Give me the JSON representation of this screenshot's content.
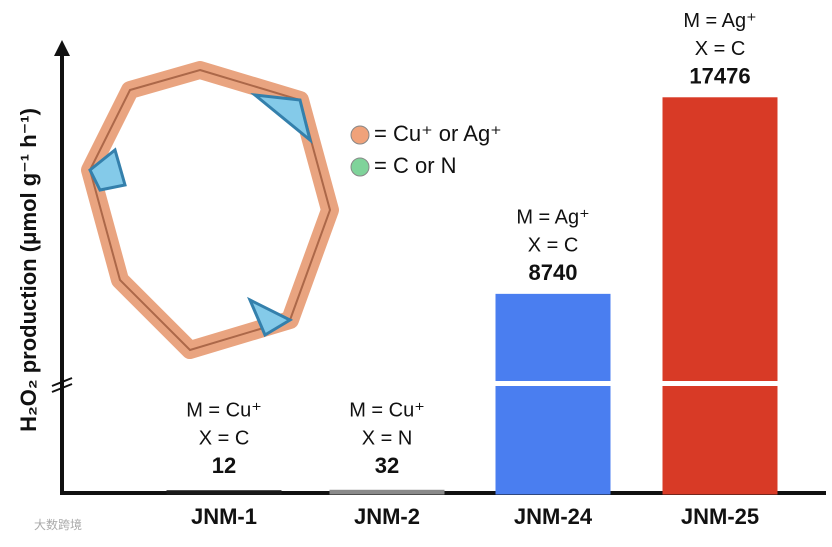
{
  "chart_data": {
    "type": "bar",
    "ylabel": "H₂O₂ production (μmol g⁻¹ h⁻¹)",
    "categories": [
      "JNM-1",
      "JNM-2",
      "JNM-24",
      "JNM-25"
    ],
    "values": [
      12,
      32,
      8740,
      17476
    ],
    "colors": [
      "#1a1a1a",
      "#8a8a8a",
      "#4a7ef0",
      "#d83a26"
    ],
    "annotations": [
      [
        "M = Cu⁺",
        "X = C"
      ],
      [
        "M = Cu⁺",
        "X = N"
      ],
      [
        "M = Ag⁺",
        "X = C"
      ],
      [
        "M = Ag⁺",
        "X = C"
      ]
    ],
    "ylim": [
      0,
      20000
    ],
    "legend": [
      {
        "label": "= Cu⁺ or Ag⁺",
        "color": "#f0a27a"
      },
      {
        "label": "= C or N",
        "color": "#7fd39a"
      }
    ],
    "watermark": "大数跨境"
  }
}
